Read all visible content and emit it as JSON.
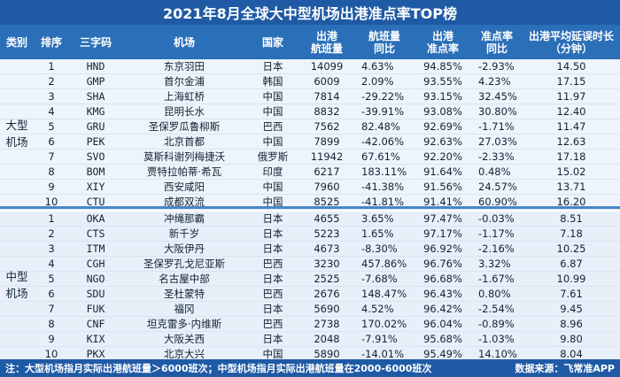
{
  "title": "2021年8月全球大中型机场出港准点率TOP榜",
  "headers": {
    "category": "类别",
    "rank": "排序",
    "code": "三字码",
    "airport": "机场",
    "country": "国家",
    "flights_l1": "出港",
    "flights_l2": "航班量",
    "yoy_l1": "航班量",
    "yoy_l2": "同比",
    "ontime_l1": "出港",
    "ontime_l2": "准点率",
    "ontime_yoy_l1": "准点率",
    "ontime_yoy_l2": "同比",
    "delay_l1": "出港平均延误时长",
    "delay_l2": "（分钟）"
  },
  "categories": {
    "large_l1": "大型",
    "large_l2": "机场",
    "medium_l1": "中型",
    "medium_l2": "机场"
  },
  "large": [
    {
      "rank": "1",
      "code": "HND",
      "airport": "东京羽田",
      "country": "日本",
      "flights": "14099",
      "yoy": "4.63%",
      "ontime": "94.85%",
      "ontime_yoy": "-2.93%",
      "delay": "14.50"
    },
    {
      "rank": "2",
      "code": "GMP",
      "airport": "首尔金浦",
      "country": "韩国",
      "flights": "6009",
      "yoy": "2.09%",
      "ontime": "93.55%",
      "ontime_yoy": "4.23%",
      "delay": "17.15"
    },
    {
      "rank": "3",
      "code": "SHA",
      "airport": "上海虹桥",
      "country": "中国",
      "flights": "7814",
      "yoy": "-29.22%",
      "ontime": "93.15%",
      "ontime_yoy": "32.45%",
      "delay": "11.97"
    },
    {
      "rank": "4",
      "code": "KMG",
      "airport": "昆明长水",
      "country": "中国",
      "flights": "8832",
      "yoy": "-39.91%",
      "ontime": "93.08%",
      "ontime_yoy": "30.80%",
      "delay": "12.40"
    },
    {
      "rank": "5",
      "code": "GRU",
      "airport": "圣保罗瓜鲁柳斯",
      "country": "巴西",
      "flights": "7562",
      "yoy": "82.48%",
      "ontime": "92.69%",
      "ontime_yoy": "-1.71%",
      "delay": "11.47"
    },
    {
      "rank": "6",
      "code": "PEK",
      "airport": "北京首都",
      "country": "中国",
      "flights": "7899",
      "yoy": "-42.06%",
      "ontime": "92.63%",
      "ontime_yoy": "27.03%",
      "delay": "12.63"
    },
    {
      "rank": "7",
      "code": "SVO",
      "airport": "莫斯科谢列梅捷沃",
      "country": "俄罗斯",
      "flights": "11942",
      "yoy": "67.61%",
      "ontime": "92.20%",
      "ontime_yoy": "-2.33%",
      "delay": "17.18"
    },
    {
      "rank": "8",
      "code": "BOM",
      "airport": "贾特拉帕蒂·希瓦",
      "country": "印度",
      "flights": "6217",
      "yoy": "183.11%",
      "ontime": "91.64%",
      "ontime_yoy": "0.48%",
      "delay": "15.02"
    },
    {
      "rank": "9",
      "code": "XIY",
      "airport": "西安咸阳",
      "country": "中国",
      "flights": "7960",
      "yoy": "-41.38%",
      "ontime": "91.56%",
      "ontime_yoy": "24.57%",
      "delay": "13.71"
    },
    {
      "rank": "10",
      "code": "CTU",
      "airport": "成都双流",
      "country": "中国",
      "flights": "8525",
      "yoy": "-41.81%",
      "ontime": "91.41%",
      "ontime_yoy": "60.90%",
      "delay": "16.20"
    }
  ],
  "medium": [
    {
      "rank": "1",
      "code": "OKA",
      "airport": "冲绳那霸",
      "country": "日本",
      "flights": "4655",
      "yoy": "3.65%",
      "ontime": "97.47%",
      "ontime_yoy": "-0.03%",
      "delay": "8.51"
    },
    {
      "rank": "2",
      "code": "CTS",
      "airport": "新千岁",
      "country": "日本",
      "flights": "5223",
      "yoy": "1.65%",
      "ontime": "97.17%",
      "ontime_yoy": "-1.17%",
      "delay": "7.18"
    },
    {
      "rank": "3",
      "code": "ITM",
      "airport": "大阪伊丹",
      "country": "日本",
      "flights": "4673",
      "yoy": "-8.30%",
      "ontime": "96.92%",
      "ontime_yoy": "-2.16%",
      "delay": "10.25"
    },
    {
      "rank": "4",
      "code": "CGH",
      "airport": "圣保罗孔戈尼亚斯",
      "country": "巴西",
      "flights": "3230",
      "yoy": "457.86%",
      "ontime": "96.76%",
      "ontime_yoy": "3.32%",
      "delay": "6.87"
    },
    {
      "rank": "5",
      "code": "NGO",
      "airport": "名古屋中部",
      "country": "日本",
      "flights": "2525",
      "yoy": "-7.68%",
      "ontime": "96.68%",
      "ontime_yoy": "-1.67%",
      "delay": "10.99"
    },
    {
      "rank": "6",
      "code": "SDU",
      "airport": "圣杜蒙特",
      "country": "巴西",
      "flights": "2676",
      "yoy": "148.47%",
      "ontime": "96.43%",
      "ontime_yoy": "0.80%",
      "delay": "7.61"
    },
    {
      "rank": "7",
      "code": "FUK",
      "airport": "福冈",
      "country": "日本",
      "flights": "5690",
      "yoy": "4.52%",
      "ontime": "96.42%",
      "ontime_yoy": "-2.54%",
      "delay": "9.45"
    },
    {
      "rank": "8",
      "code": "CNF",
      "airport": "坦克雷多·内维斯",
      "country": "巴西",
      "flights": "2738",
      "yoy": "170.02%",
      "ontime": "96.04%",
      "ontime_yoy": "-0.89%",
      "delay": "8.96"
    },
    {
      "rank": "9",
      "code": "KIX",
      "airport": "大阪关西",
      "country": "日本",
      "flights": "2048",
      "yoy": "-7.91%",
      "ontime": "95.68%",
      "ontime_yoy": "-1.03%",
      "delay": "9.80"
    },
    {
      "rank": "10",
      "code": "PKX",
      "airport": "北京大兴",
      "country": "中国",
      "flights": "5890",
      "yoy": "-14.01%",
      "ontime": "95.49%",
      "ontime_yoy": "14.10%",
      "delay": "8.04"
    }
  ],
  "footer": {
    "note": "注：大型机场指月实际出港航班量＞6000班次；中型机场指月实际出港航班量在2000-6000班次",
    "source": "数据来源：飞常准APP"
  }
}
